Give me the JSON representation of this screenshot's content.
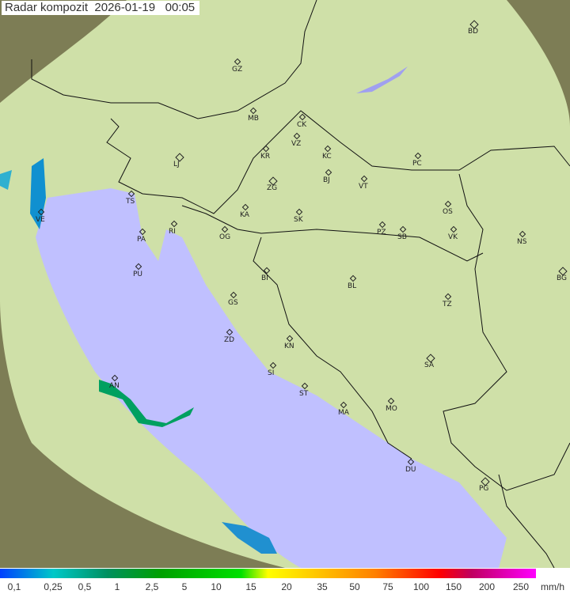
{
  "title": "Radar kompozit  2026-01-19   00:05",
  "colors": {
    "land": "#c8dca0",
    "sea": "#c0c0ff",
    "outside": "#8a8a5a",
    "radar_echo": "#00a060"
  },
  "cities": [
    "GZ",
    "MB",
    "CK",
    "VZ",
    "KR",
    "KC",
    "LJ",
    "ZG",
    "BJ",
    "VT",
    "PC",
    "BD",
    "TS",
    "VE",
    "RI",
    "KA",
    "SK",
    "PA",
    "OG",
    "PZ",
    "SB",
    "OS",
    "VK",
    "NS",
    "PU",
    "BI",
    "BL",
    "BG",
    "GS",
    "TZ",
    "ZD",
    "KN",
    "SA",
    "SI",
    "ST",
    "MA",
    "MO",
    "AN",
    "DU",
    "PG"
  ],
  "legend": {
    "ticks": [
      "0,1",
      "0,25",
      "0,5",
      "1",
      "2,5",
      "5",
      "10",
      "15",
      "20",
      "35",
      "50",
      "75",
      "100",
      "150",
      "200",
      "250"
    ],
    "unit": "mm/h"
  }
}
